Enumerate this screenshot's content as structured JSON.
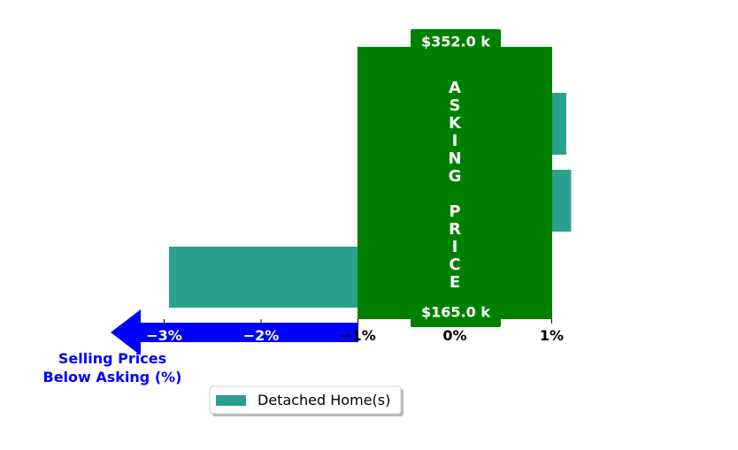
{
  "chart_data": {
    "type": "bar",
    "orientation": "horizontal",
    "series": [
      {
        "name": "Detached Home(s)",
        "color": "#2ca08f",
        "values": [
          -2.95,
          1.2,
          1.15
        ]
      }
    ],
    "xlim": [
      -3.2,
      1.4
    ],
    "xticks": [
      "−3%",
      "−2%",
      "−1%",
      "0%",
      "1%"
    ],
    "xtick_values": [
      -3,
      -2,
      -1,
      0,
      1
    ],
    "grid": false,
    "legend_position": "bottom-center",
    "asking_band": {
      "range": [
        -1,
        1
      ],
      "color": "#008000",
      "text": "ASKING  PRICE",
      "top_label": "$352.0 k",
      "bottom_label": "$165.0 k"
    },
    "below_arrow": {
      "color": "#0000ff",
      "label_line1": "Selling Prices",
      "label_line2": "Below Asking (%)"
    }
  }
}
